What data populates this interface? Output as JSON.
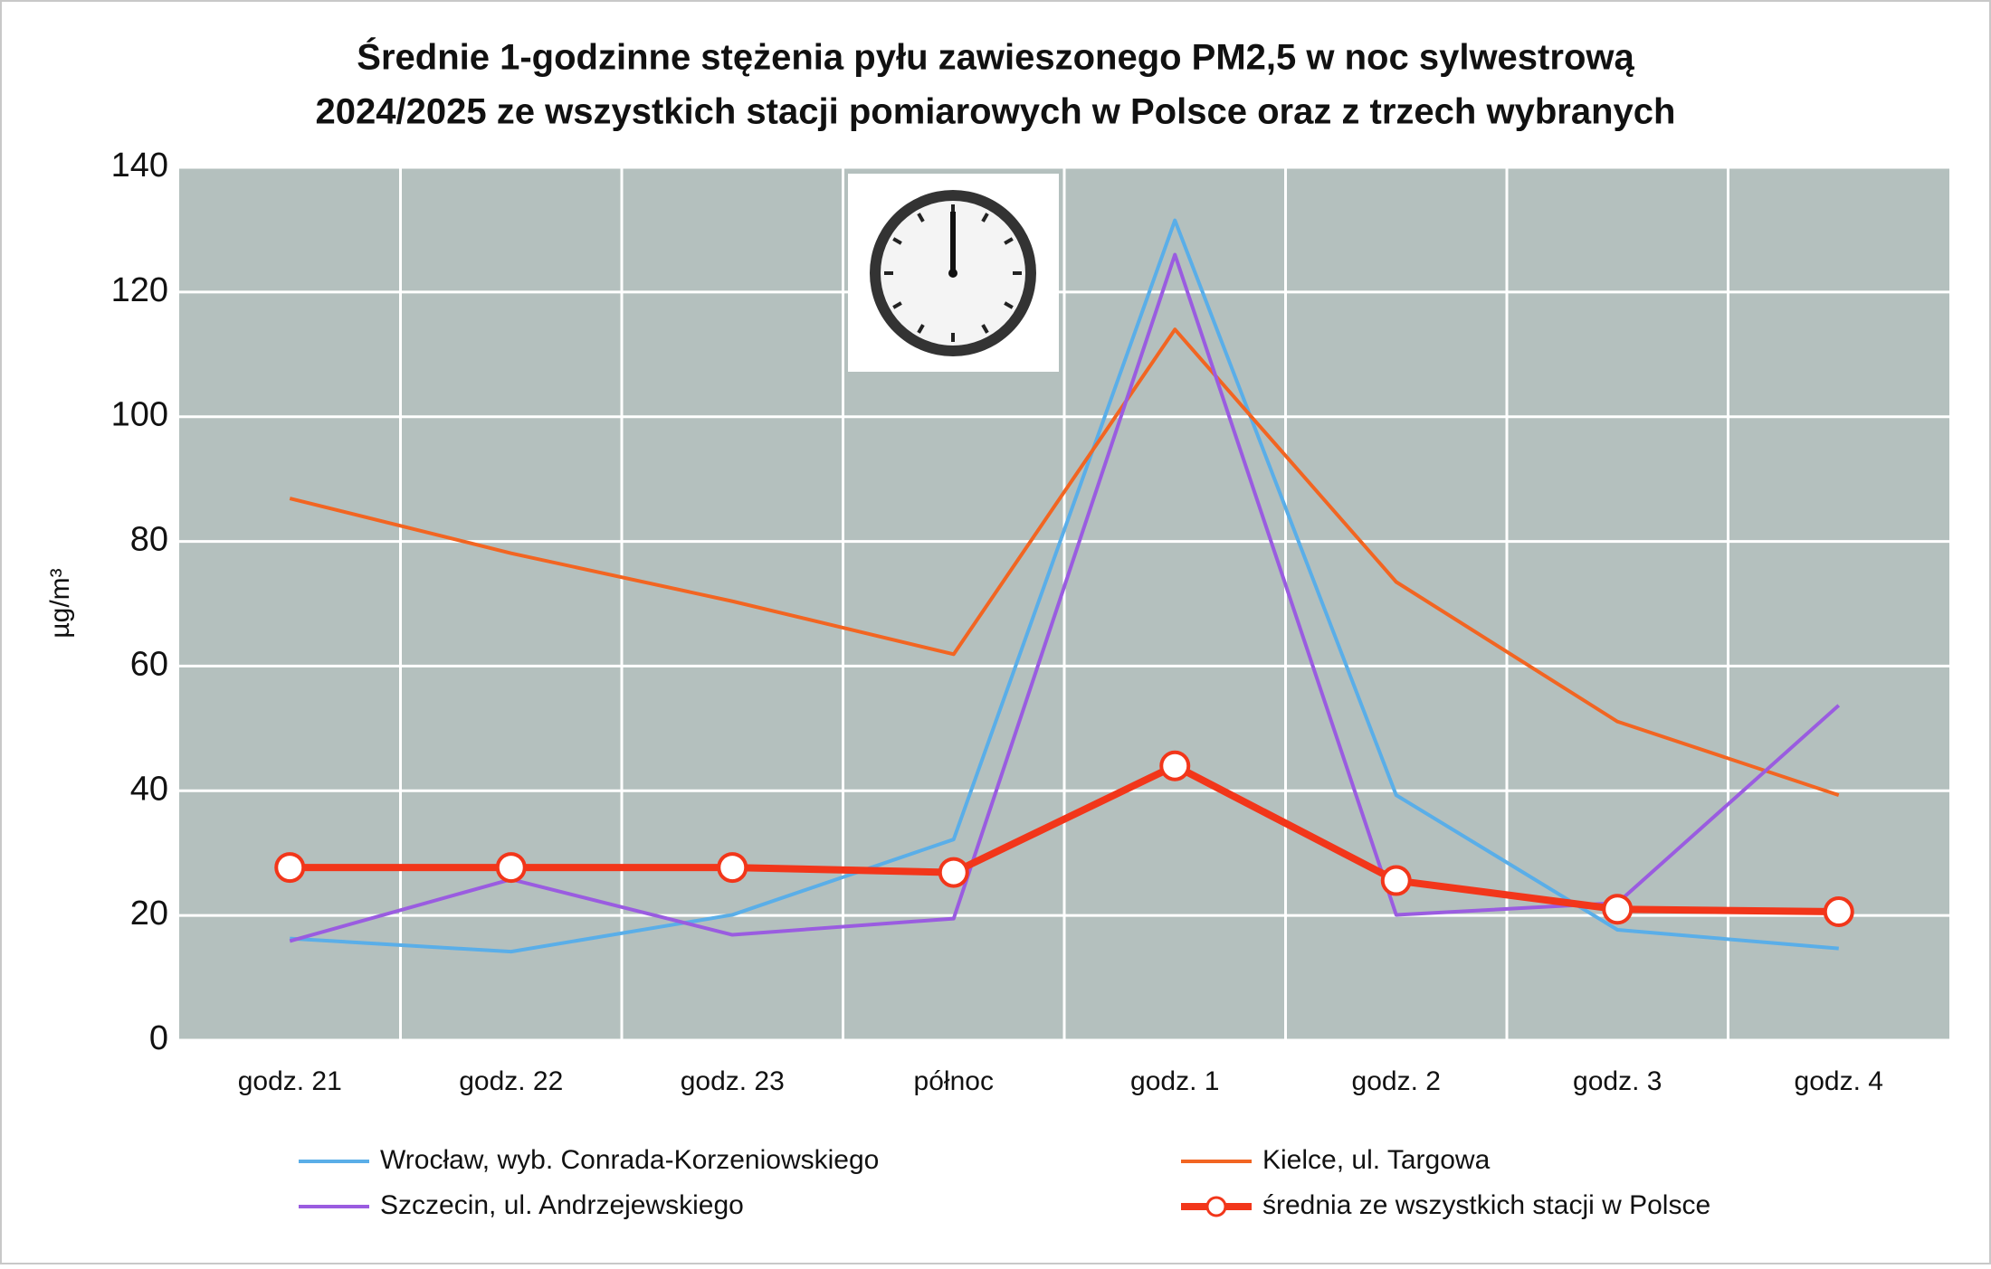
{
  "chart_data": {
    "type": "line",
    "title": [
      "Średnie 1-godzinne stężenia pyłu zawieszonego PM2,5 w noc sylwestrową",
      "2024/2025 ze wszystkich stacji pomiarowych w Polsce oraz z trzech wybranych"
    ],
    "y_label": "µg/m³",
    "categories": [
      "godz. 21",
      "godz. 22",
      "godz. 23",
      "północ",
      "godz. 1",
      "godz. 2",
      "godz. 3",
      "godz. 4"
    ],
    "series": [
      {
        "name": "Wrocław, wyb. Conrada-Korzeniowskiego",
        "color": "#5aaee8",
        "line_width": 4,
        "values": [
          16.3,
          14.2,
          20.1,
          32.2,
          131.5,
          39.3,
          17.7,
          14.7
        ]
      },
      {
        "name": "Kielce, ul. Targowa",
        "color": "#f26522",
        "line_width": 4,
        "values": [
          86.9,
          78.1,
          70.4,
          61.9,
          114,
          73.5,
          51.1,
          39.3
        ]
      },
      {
        "name": "Szczecin, ul. Andrzejewskiego",
        "color": "#9a5ce0",
        "line_width": 4,
        "values": [
          15.9,
          25.8,
          16.9,
          19.5,
          126,
          20.1,
          22,
          53.7
        ]
      },
      {
        "name": "średnia ze wszystkich stacji w Polsce",
        "color": "#f2361a",
        "line_width": 8,
        "marker": "circle",
        "values": [
          27.7,
          27.7,
          27.7,
          26.9,
          44,
          25.6,
          21,
          20.6
        ]
      }
    ],
    "ylim": [
      0,
      140
    ],
    "yticks": [
      0,
      20,
      40,
      60,
      80,
      100,
      120,
      140
    ],
    "grid": true,
    "legend": "bottom"
  }
}
